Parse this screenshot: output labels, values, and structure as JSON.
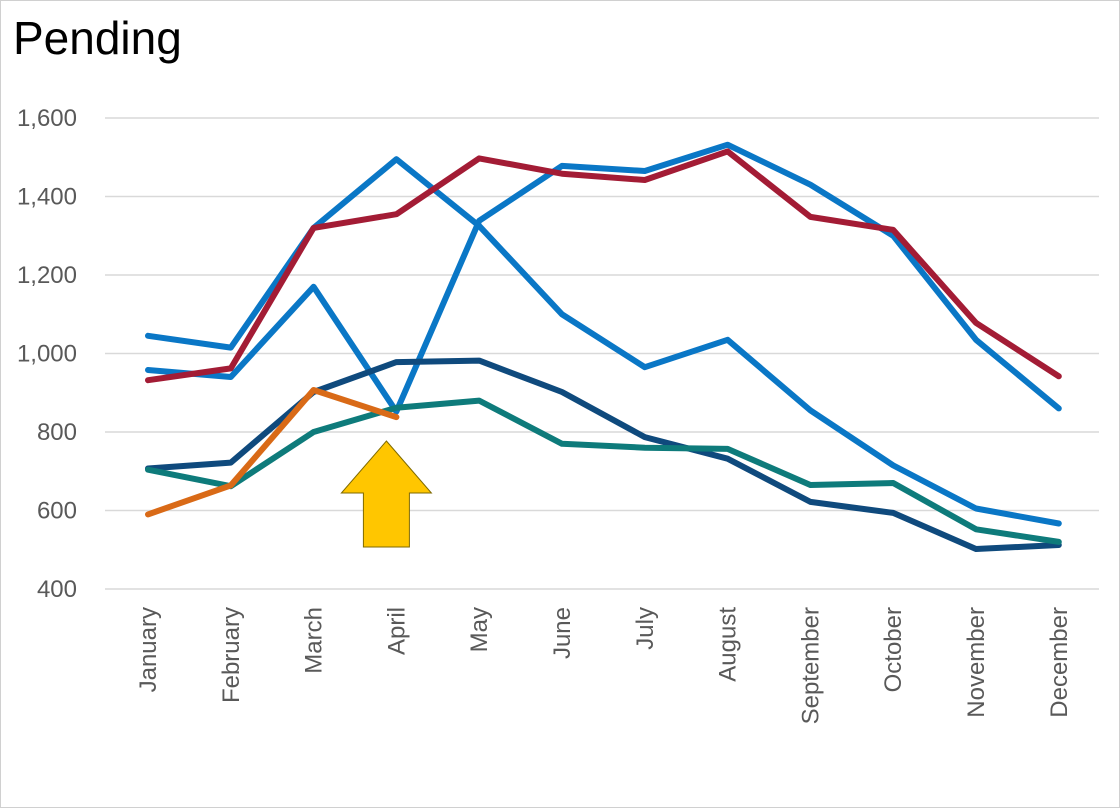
{
  "chart_data": {
    "type": "line",
    "title": "Pending",
    "categories": [
      "January",
      "February",
      "March",
      "April",
      "May",
      "June",
      "July",
      "August",
      "September",
      "October",
      "November",
      "December"
    ],
    "ylim": [
      400,
      1600
    ],
    "yticks": [
      400,
      600,
      800,
      1000,
      1200,
      1400,
      1600
    ],
    "ytick_labels": [
      "400",
      "600",
      "800",
      "1,000",
      "1,200",
      "1,400",
      "1,600"
    ],
    "grid": true,
    "series": [
      {
        "color": "#0a77c6",
        "values": [
          1045,
          1015,
          1320,
          1495,
          1325,
          1100,
          965,
          1035,
          855,
          715,
          605,
          567
        ]
      },
      {
        "color": "#0a77c6",
        "values": [
          958,
          940,
          1170,
          852,
          1338,
          1478,
          1465,
          1532,
          1430,
          1300,
          1035,
          860
        ]
      },
      {
        "color": "#a31c35",
        "values": [
          932,
          962,
          1320,
          1355,
          1497,
          1458,
          1442,
          1515,
          1348,
          1315,
          1078,
          942
        ]
      },
      {
        "color": "#0f4a7d",
        "values": [
          707,
          722,
          902,
          978,
          982,
          902,
          787,
          732,
          622,
          594,
          502,
          512
        ]
      },
      {
        "color": "#0e7b7b",
        "values": [
          704,
          662,
          800,
          862,
          880,
          770,
          760,
          757,
          665,
          670,
          552,
          520
        ]
      },
      {
        "color": "#d96a17",
        "values": [
          590,
          664,
          907,
          838,
          null,
          null,
          null,
          null,
          null,
          null,
          null,
          null
        ]
      }
    ],
    "annotation": {
      "type": "arrow",
      "direction": "up",
      "at_category": "April",
      "color": "#ffc600"
    }
  }
}
